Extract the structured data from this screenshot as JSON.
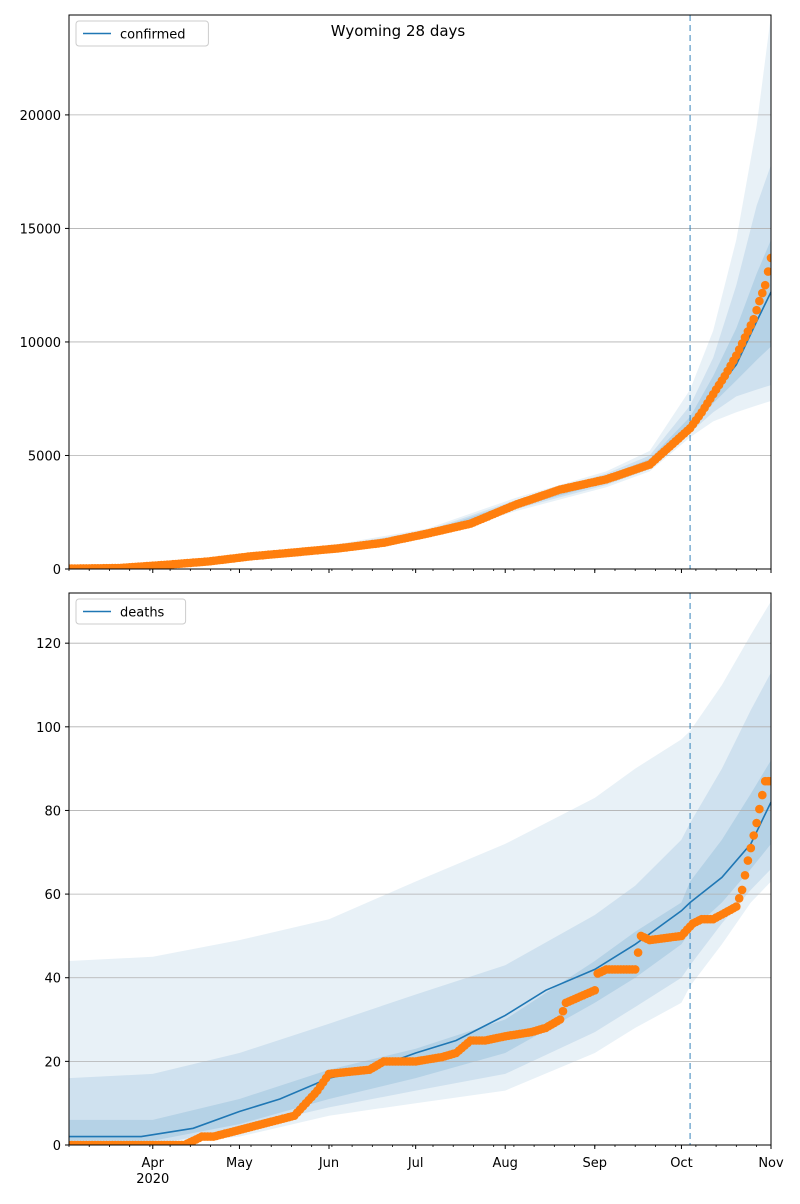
{
  "chart_data": [
    {
      "type": "line",
      "title": "Wyoming 28 days",
      "xlabel": "",
      "ylabel": "",
      "xlim": [
        "2020-03-03",
        "2020-11-01"
      ],
      "ylim": [
        0,
        24400
      ],
      "yticks": [
        0,
        5000,
        10000,
        15000,
        20000
      ],
      "xticks": [
        {
          "date": "2020-04-01",
          "label": "Apr"
        },
        {
          "date": "2020-05-01",
          "label": "May"
        },
        {
          "date": "2020-06-01",
          "label": "Jun"
        },
        {
          "date": "2020-07-01",
          "label": "Jul"
        },
        {
          "date": "2020-08-01",
          "label": "Aug"
        },
        {
          "date": "2020-09-01",
          "label": "Sep"
        },
        {
          "date": "2020-10-01",
          "label": "Oct"
        },
        {
          "date": "2020-11-01",
          "label": "Nov"
        }
      ],
      "year_label": "2020",
      "grid": "horizontal",
      "legend": {
        "position": "top-left",
        "entries": [
          "confirmed"
        ]
      },
      "forecast_start": "2020-10-04",
      "series": [
        {
          "name": "confirmed",
          "style": "line",
          "x": [
            "2020-03-03",
            "2020-03-20",
            "2020-04-05",
            "2020-04-20",
            "2020-05-05",
            "2020-05-20",
            "2020-06-05",
            "2020-06-20",
            "2020-07-05",
            "2020-07-20",
            "2020-08-05",
            "2020-08-20",
            "2020-09-05",
            "2020-09-20",
            "2020-10-04",
            "2020-10-12",
            "2020-10-20",
            "2020-10-27",
            "2020-11-01"
          ],
          "y": [
            20,
            40,
            180,
            330,
            560,
            730,
            920,
            1160,
            1560,
            2000,
            2850,
            3500,
            3950,
            4650,
            6300,
            7700,
            9000,
            10900,
            12200
          ]
        },
        {
          "name": "confirmed observed",
          "style": "dots",
          "x": [
            "2020-03-03",
            "2020-03-20",
            "2020-04-05",
            "2020-04-20",
            "2020-05-05",
            "2020-05-20",
            "2020-06-05",
            "2020-06-20",
            "2020-07-05",
            "2020-07-20",
            "2020-08-05",
            "2020-08-20",
            "2020-09-05",
            "2020-09-20",
            "2020-10-04",
            "2020-10-08",
            "2020-10-12",
            "2020-10-16",
            "2020-10-20",
            "2020-10-23",
            "2020-10-26",
            "2020-10-28",
            "2020-10-30",
            "2020-11-01"
          ],
          "y": [
            20,
            40,
            180,
            330,
            560,
            730,
            920,
            1160,
            1560,
            2000,
            2850,
            3500,
            3950,
            4600,
            6200,
            6900,
            7700,
            8500,
            9400,
            10200,
            11000,
            11800,
            12500,
            13700
          ]
        }
      ],
      "bands": [
        {
          "x": [
            "2020-03-03",
            "2020-04-05",
            "2020-05-05",
            "2020-06-05",
            "2020-07-05",
            "2020-08-05",
            "2020-09-05",
            "2020-09-20",
            "2020-10-04",
            "2020-10-12",
            "2020-10-20",
            "2020-10-27",
            "2020-11-01"
          ],
          "lower": [
            0,
            130,
            470,
            800,
            1380,
            2560,
            3600,
            4300,
            5800,
            6500,
            6900,
            7200,
            7400
          ],
          "upper": [
            80,
            240,
            660,
            1120,
            1780,
            3150,
            4300,
            5200,
            7900,
            10500,
            14500,
            19500,
            24400
          ]
        },
        {
          "x": [
            "2020-03-03",
            "2020-04-05",
            "2020-05-05",
            "2020-06-05",
            "2020-07-05",
            "2020-08-05",
            "2020-09-05",
            "2020-09-20",
            "2020-10-04",
            "2020-10-12",
            "2020-10-20",
            "2020-10-27",
            "2020-11-01"
          ],
          "lower": [
            10,
            150,
            500,
            850,
            1450,
            2650,
            3700,
            4400,
            6000,
            6900,
            7600,
            7900,
            8100
          ],
          "upper": [
            60,
            220,
            630,
            1060,
            1700,
            3050,
            4200,
            5000,
            7200,
            9300,
            12500,
            16000,
            17800
          ]
        },
        {
          "x": [
            "2020-03-03",
            "2020-04-05",
            "2020-05-05",
            "2020-06-05",
            "2020-07-05",
            "2020-08-05",
            "2020-09-05",
            "2020-09-20",
            "2020-10-04",
            "2020-10-12",
            "2020-10-20",
            "2020-10-27",
            "2020-11-01"
          ],
          "lower": [
            15,
            165,
            530,
            880,
            1500,
            2720,
            3800,
            4500,
            6150,
            7300,
            8300,
            9200,
            9800
          ],
          "upper": [
            40,
            200,
            600,
            980,
            1640,
            2970,
            4100,
            4850,
            6700,
            8500,
            10600,
            13000,
            14500
          ]
        }
      ]
    },
    {
      "type": "line",
      "title": "",
      "xlabel": "",
      "ylabel": "",
      "xlim": [
        "2020-03-03",
        "2020-11-01"
      ],
      "ylim": [
        0,
        132
      ],
      "yticks": [
        0,
        20,
        40,
        60,
        80,
        100,
        120
      ],
      "xticks": [
        {
          "date": "2020-04-01",
          "label": "Apr"
        },
        {
          "date": "2020-05-01",
          "label": "May"
        },
        {
          "date": "2020-06-01",
          "label": "Jun"
        },
        {
          "date": "2020-07-01",
          "label": "Jul"
        },
        {
          "date": "2020-08-01",
          "label": "Aug"
        },
        {
          "date": "2020-09-01",
          "label": "Sep"
        },
        {
          "date": "2020-10-01",
          "label": "Oct"
        },
        {
          "date": "2020-11-01",
          "label": "Nov"
        }
      ],
      "year_label": "2020",
      "grid": "horizontal",
      "legend": {
        "position": "top-left",
        "entries": [
          "deaths"
        ]
      },
      "forecast_start": "2020-10-04",
      "series": [
        {
          "name": "deaths",
          "style": "line",
          "x": [
            "2020-03-03",
            "2020-03-28",
            "2020-04-15",
            "2020-05-01",
            "2020-05-15",
            "2020-06-01",
            "2020-06-15",
            "2020-07-01",
            "2020-07-15",
            "2020-08-01",
            "2020-08-15",
            "2020-09-01",
            "2020-09-15",
            "2020-10-01",
            "2020-10-04",
            "2020-10-15",
            "2020-10-25",
            "2020-11-01"
          ],
          "y": [
            2,
            2,
            4,
            8,
            11,
            16,
            18,
            22,
            25,
            31,
            37,
            42,
            48,
            56,
            58,
            64,
            72,
            82
          ]
        },
        {
          "name": "deaths observed",
          "style": "dots",
          "x": [
            "2020-03-03",
            "2020-04-12",
            "2020-04-15",
            "2020-04-18",
            "2020-04-22",
            "2020-05-20",
            "2020-05-24",
            "2020-05-28",
            "2020-06-01",
            "2020-06-15",
            "2020-06-20",
            "2020-07-01",
            "2020-07-10",
            "2020-07-15",
            "2020-07-20",
            "2020-07-25",
            "2020-08-01",
            "2020-08-10",
            "2020-08-15",
            "2020-08-20",
            "2020-08-22",
            "2020-09-01",
            "2020-09-02",
            "2020-09-05",
            "2020-09-15",
            "2020-09-17",
            "2020-09-20",
            "2020-10-01",
            "2020-10-05",
            "2020-10-08",
            "2020-10-12",
            "2020-10-20",
            "2020-10-22",
            "2020-10-24",
            "2020-10-27",
            "2020-10-30",
            "2020-11-01"
          ],
          "y": [
            0,
            0,
            1,
            2,
            2,
            7,
            10,
            13,
            17,
            18,
            20,
            20,
            21,
            22,
            25,
            25,
            26,
            27,
            28,
            30,
            34,
            37,
            41,
            42,
            42,
            50,
            49,
            50,
            53,
            54,
            54,
            57,
            61,
            68,
            77,
            87,
            87
          ]
        }
      ],
      "bands": [
        {
          "x": [
            "2020-03-03",
            "2020-04-01",
            "2020-05-01",
            "2020-06-01",
            "2020-07-01",
            "2020-08-01",
            "2020-09-01",
            "2020-09-15",
            "2020-10-01",
            "2020-10-04",
            "2020-10-15",
            "2020-10-25",
            "2020-11-01"
          ],
          "lower": [
            0,
            0,
            2,
            7,
            10,
            13,
            22,
            28,
            34,
            38,
            48,
            58,
            63
          ],
          "upper": [
            44,
            45,
            49,
            54,
            63,
            72,
            83,
            90,
            97,
            99,
            110,
            122,
            130
          ]
        },
        {
          "x": [
            "2020-03-03",
            "2020-04-01",
            "2020-05-01",
            "2020-06-01",
            "2020-07-01",
            "2020-08-01",
            "2020-09-01",
            "2020-09-15",
            "2020-10-01",
            "2020-10-04",
            "2020-10-15",
            "2020-10-25",
            "2020-11-01"
          ],
          "lower": [
            0,
            0,
            4,
            9,
            13,
            17,
            27,
            33,
            40,
            43,
            53,
            61,
            66
          ],
          "upper": [
            16,
            17,
            22,
            29,
            36,
            43,
            55,
            62,
            73,
            77,
            90,
            104,
            113
          ]
        },
        {
          "x": [
            "2020-03-03",
            "2020-04-01",
            "2020-05-01",
            "2020-06-01",
            "2020-07-01",
            "2020-08-01",
            "2020-09-01",
            "2020-09-15",
            "2020-10-01",
            "2020-10-04",
            "2020-10-15",
            "2020-10-25",
            "2020-11-01"
          ],
          "lower": [
            1,
            1,
            5,
            11,
            16,
            22,
            34,
            40,
            48,
            51,
            58,
            66,
            72
          ],
          "upper": [
            6,
            6,
            11,
            18,
            23,
            30,
            44,
            51,
            58,
            63,
            73,
            84,
            92
          ]
        }
      ]
    }
  ]
}
